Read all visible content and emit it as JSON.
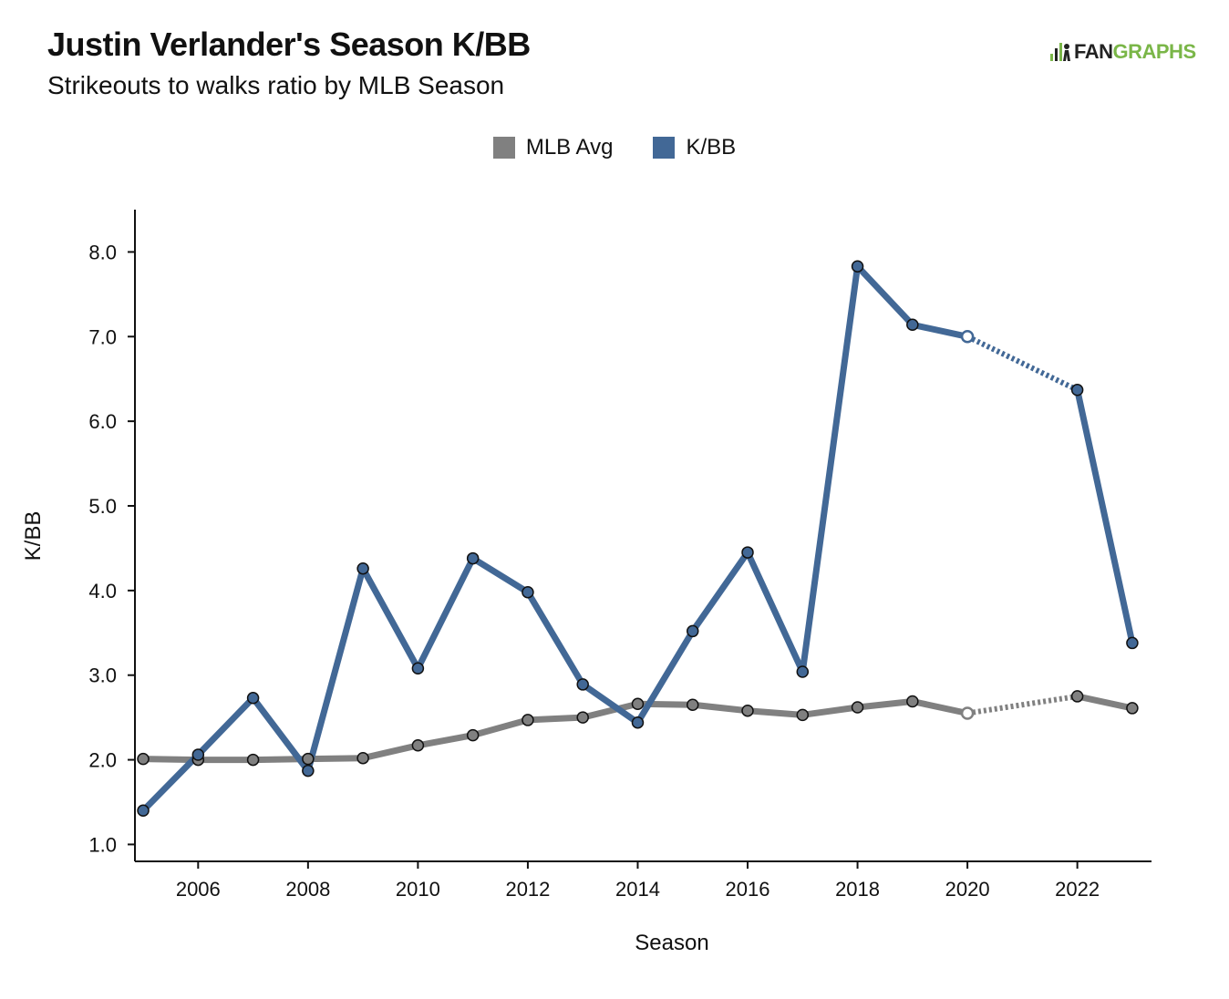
{
  "header": {
    "title": "Justin Verlander's Season K/BB",
    "subtitle": "Strikeouts to walks ratio by MLB Season"
  },
  "logo": {
    "fan": "FAN",
    "graphs": "GRAPHS",
    "icon": "fangraphs-logo-icon"
  },
  "colors": {
    "kbb": "#426896",
    "mlb": "#808080",
    "axis": "#111111"
  },
  "chart_data": {
    "type": "line",
    "xlabel": "Season",
    "ylabel": "K/BB",
    "xlim": [
      2004.85,
      2023.35
    ],
    "ylim": [
      0.8,
      8.5
    ],
    "xticks": [
      2006,
      2008,
      2010,
      2012,
      2014,
      2016,
      2018,
      2020,
      2022
    ],
    "yticks": [
      1.0,
      2.0,
      3.0,
      4.0,
      5.0,
      6.0,
      7.0,
      8.0
    ],
    "legend": [
      "MLB Avg",
      "K/BB"
    ],
    "legend_position": "top-center",
    "gap_dashed_between": [
      2020,
      2022
    ],
    "hollow_marker_season": 2020,
    "series": [
      {
        "name": "MLB Avg",
        "color": "#808080",
        "x": [
          2005,
          2006,
          2007,
          2008,
          2009,
          2010,
          2011,
          2012,
          2013,
          2014,
          2015,
          2016,
          2017,
          2018,
          2019,
          2020,
          2022,
          2023
        ],
        "values": [
          2.01,
          2.0,
          2.0,
          2.01,
          2.02,
          2.17,
          2.29,
          2.47,
          2.5,
          2.66,
          2.65,
          2.58,
          2.53,
          2.62,
          2.69,
          2.55,
          2.75,
          2.61
        ]
      },
      {
        "name": "K/BB",
        "color": "#426896",
        "x": [
          2005,
          2006,
          2007,
          2008,
          2009,
          2010,
          2011,
          2012,
          2013,
          2014,
          2015,
          2016,
          2017,
          2018,
          2019,
          2020,
          2022,
          2023
        ],
        "values": [
          1.4,
          2.06,
          2.73,
          1.87,
          4.26,
          3.08,
          4.38,
          3.98,
          2.89,
          2.44,
          3.52,
          4.45,
          3.04,
          7.83,
          7.14,
          7.0,
          6.37,
          3.38
        ]
      }
    ]
  }
}
